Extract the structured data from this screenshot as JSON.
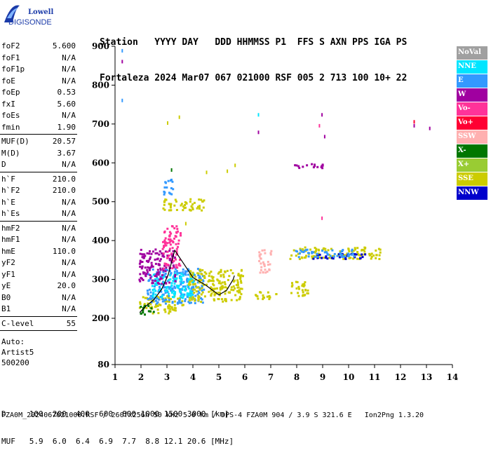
{
  "logo": {
    "line1": "Lowell",
    "line2": "DIGISONDE"
  },
  "header": {
    "line1": "Station   YYYY DAY   DDD HHMMSS P1  FFS S AXN PPS IGA PS",
    "line2": "Fortaleza 2024 Mar07 067 021000 RSF 005 2 713 100 10+ 22"
  },
  "params": {
    "group1": [
      {
        "label": "foF2",
        "value": "5.600"
      },
      {
        "label": "foF1",
        "value": "N/A"
      },
      {
        "label": "foF1p",
        "value": "N/A"
      },
      {
        "label": "foE",
        "value": "N/A"
      },
      {
        "label": "foEp",
        "value": "0.53"
      },
      {
        "label": "fxI",
        "value": "5.60"
      },
      {
        "label": "foEs",
        "value": "N/A"
      },
      {
        "label": "fmin",
        "value": "1.90"
      }
    ],
    "group2": [
      {
        "label": "MUF(D)",
        "value": "20.57"
      },
      {
        "label": "M(D)",
        "value": "3.67"
      },
      {
        "label": "D",
        "value": "N/A"
      }
    ],
    "group3": [
      {
        "label": "h`F",
        "value": "210.0"
      },
      {
        "label": "h`F2",
        "value": "210.0"
      },
      {
        "label": "h`E",
        "value": "N/A"
      },
      {
        "label": "h`Es",
        "value": "N/A"
      }
    ],
    "group4": [
      {
        "label": "hmF2",
        "value": "N/A"
      },
      {
        "label": "hmF1",
        "value": "N/A"
      },
      {
        "label": "hmE",
        "value": "110.0"
      },
      {
        "label": "yF2",
        "value": "N/A"
      },
      {
        "label": "yF1",
        "value": "N/A"
      },
      {
        "label": "yE",
        "value": "20.0"
      },
      {
        "label": "B0",
        "value": "N/A"
      },
      {
        "label": "B1",
        "value": "N/A"
      }
    ],
    "group5": [
      {
        "label": "C-level",
        "value": "55"
      }
    ],
    "extra": [
      "Auto:",
      "Artist5",
      "500200"
    ]
  },
  "legend": [
    {
      "label": "NoVal",
      "color": "#a0a0a0"
    },
    {
      "label": "NNE",
      "color": "#00e5ff"
    },
    {
      "label": "E",
      "color": "#3399ff"
    },
    {
      "label": "W",
      "color": "#a000a0"
    },
    {
      "label": "Vo-",
      "color": "#ff3399"
    },
    {
      "label": "Vo+",
      "color": "#ff0033"
    },
    {
      "label": "SSW",
      "color": "#ffb0b0"
    },
    {
      "label": "X-",
      "color": "#007700"
    },
    {
      "label": "X+",
      "color": "#99cc33"
    },
    {
      "label": "SSE",
      "color": "#cccc00"
    },
    {
      "label": "NNW",
      "color": "#0000cc"
    }
  ],
  "bottom": {
    "line1": "D     100  200  400  600  800 1000 1500 3000 [km]",
    "line2": "MUF   5.9  6.0  6.4  6.9  7.7  8.8 12.1 20.6 [MHz]"
  },
  "footer": "FZA0M_2024067021000.RSF / 260fx256h 50 kHz 5.0 km / DPS-4 FZA0M 904 / 3.9 S 321.6 E   Ion2Png 1.3.20",
  "chart_data": {
    "type": "scatter",
    "x_ticks": [
      "1",
      "2",
      "3",
      "4",
      "5",
      "6",
      "7",
      "8",
      "9",
      "10",
      "11",
      "12",
      "13",
      "14"
    ],
    "y_ticks": [
      "80",
      "200",
      "300",
      "400",
      "500",
      "600",
      "700",
      "800",
      "900"
    ],
    "xlim": [
      1,
      14
    ],
    "y_tick_values": [
      80,
      200,
      300,
      400,
      500,
      600,
      700,
      800,
      900
    ],
    "trace": [
      [
        1.95,
        215
      ],
      [
        2.2,
        232
      ],
      [
        2.5,
        248
      ],
      [
        2.8,
        275
      ],
      [
        3.05,
        312
      ],
      [
        3.3,
        375
      ],
      [
        3.6,
        345
      ],
      [
        4.0,
        305
      ],
      [
        4.5,
        285
      ],
      [
        5.0,
        260
      ],
      [
        5.3,
        272
      ],
      [
        5.55,
        300
      ],
      [
        5.6,
        310
      ]
    ],
    "clusters": [
      {
        "color": "#cccc00",
        "x": [
          1.9,
          3.6
        ],
        "y": [
          215,
          260
        ]
      },
      {
        "color": "#007700",
        "x": [
          1.9,
          2.5
        ],
        "y": [
          212,
          235
        ]
      },
      {
        "color": "#3399ff",
        "x": [
          2.2,
          4.4
        ],
        "y": [
          240,
          330
        ]
      },
      {
        "color": "#00e5ff",
        "x": [
          2.4,
          4.0
        ],
        "y": [
          255,
          320
        ]
      },
      {
        "color": "#cccc00",
        "x": [
          3.8,
          5.9
        ],
        "y": [
          245,
          330
        ]
      },
      {
        "color": "#cccc00",
        "x": [
          2.8,
          4.5
        ],
        "y": [
          480,
          510
        ]
      },
      {
        "color": "#3399ff",
        "x": [
          2.8,
          3.2
        ],
        "y": [
          520,
          560
        ]
      },
      {
        "color": "#cccc00",
        "x": [
          6.3,
          7.2
        ],
        "y": [
          250,
          270
        ]
      },
      {
        "color": "#cccc00",
        "x": [
          7.7,
          8.4
        ],
        "y": [
          260,
          300
        ]
      },
      {
        "color": "#cccc00",
        "x": [
          7.7,
          11.2
        ],
        "y": [
          355,
          385
        ]
      },
      {
        "color": "#ffb0b0",
        "x": [
          6.5,
          7.0
        ],
        "y": [
          320,
          380
        ]
      },
      {
        "color": "#a000a0",
        "x": [
          7.7,
          9.0
        ],
        "y": [
          588,
          600
        ]
      },
      {
        "color": "#a000a0",
        "x": [
          1.9,
          3.3
        ],
        "y": [
          290,
          380
        ]
      },
      {
        "color": "#ff3399",
        "x": [
          2.8,
          3.5
        ],
        "y": [
          330,
          440
        ]
      },
      {
        "color": "#0000cc",
        "x": [
          8.6,
          10.8
        ],
        "y": [
          355,
          368
        ]
      },
      {
        "color": "#3399ff",
        "x": [
          7.9,
          10.2
        ],
        "y": [
          360,
          380
        ]
      }
    ],
    "isolated": [
      {
        "color": "#a000a0",
        "x": 1.25,
        "y": 865
      },
      {
        "color": "#3399ff",
        "x": 1.25,
        "y": 893
      },
      {
        "color": "#3399ff",
        "x": 1.25,
        "y": 765
      },
      {
        "color": "#cccc00",
        "x": 3.0,
        "y": 707
      },
      {
        "color": "#cccc00",
        "x": 3.45,
        "y": 722
      },
      {
        "color": "#00e5ff",
        "x": 6.5,
        "y": 728
      },
      {
        "color": "#a000a0",
        "x": 6.5,
        "y": 683
      },
      {
        "color": "#a000a0",
        "x": 8.95,
        "y": 728
      },
      {
        "color": "#ff3399",
        "x": 8.85,
        "y": 700
      },
      {
        "color": "#a000a0",
        "x": 9.05,
        "y": 672
      },
      {
        "color": "#ff0033",
        "x": 12.5,
        "y": 710
      },
      {
        "color": "#a000a0",
        "x": 12.5,
        "y": 700
      },
      {
        "color": "#a000a0",
        "x": 13.1,
        "y": 693
      },
      {
        "color": "#cccc00",
        "x": 4.5,
        "y": 580
      },
      {
        "color": "#cccc00",
        "x": 5.6,
        "y": 598
      },
      {
        "color": "#cccc00",
        "x": 5.3,
        "y": 583
      },
      {
        "color": "#ff3399",
        "x": 8.95,
        "y": 462
      },
      {
        "color": "#007700",
        "x": 3.15,
        "y": 586
      },
      {
        "color": "#cccc00",
        "x": 3.7,
        "y": 448
      }
    ]
  }
}
